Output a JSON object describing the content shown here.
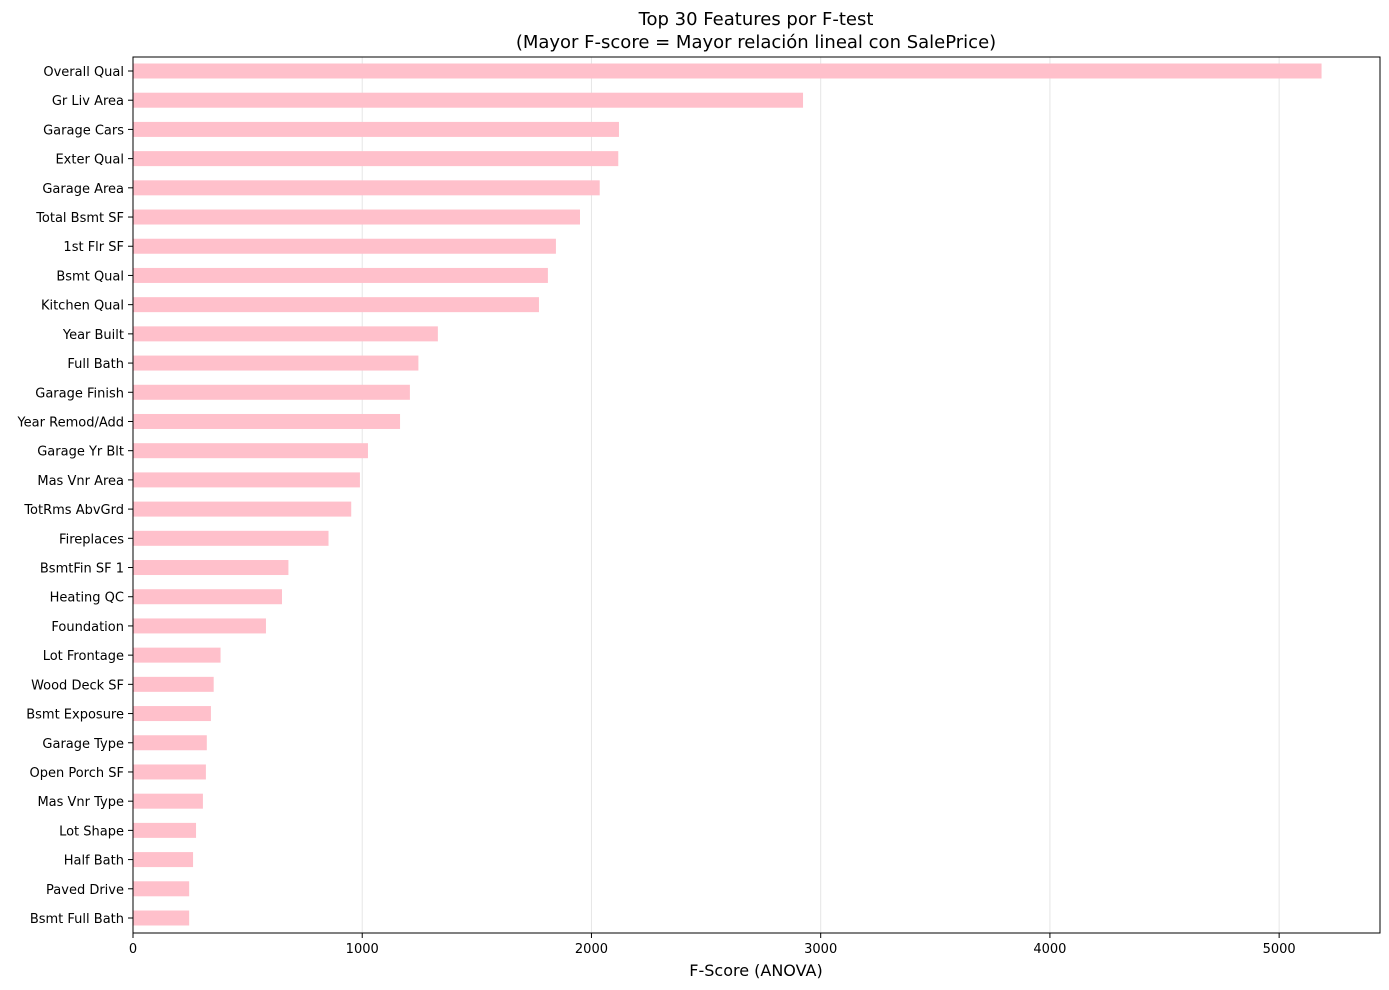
{
  "chart_data": {
    "type": "bar",
    "orientation": "horizontal",
    "title": "Top 30 Features por F-test",
    "subtitle": "(Mayor F-score = Mayor relación lineal con SalePrice)",
    "xlabel": "F-Score (ANOVA)",
    "ylabel": "",
    "xlim": [
      0,
      5440
    ],
    "xticks": [
      0,
      1000,
      2000,
      3000,
      4000,
      5000
    ],
    "grid": "x",
    "bar_color": "#ffc0cb",
    "categories": [
      "Overall Qual",
      "Gr Liv Area",
      "Garage Cars",
      "Exter Qual",
      "Garage Area",
      "Total Bsmt SF",
      "1st Flr SF",
      "Bsmt Qual",
      "Kitchen Qual",
      "Year Built",
      "Full Bath",
      "Garage Finish",
      "Year Remod/Add",
      "Garage Yr Blt",
      "Mas Vnr Area",
      "TotRms AbvGrd",
      "Fireplaces",
      "BsmtFin SF 1",
      "Heating QC",
      "Foundation",
      "Lot Frontage",
      "Wood Deck SF",
      "Bsmt Exposure",
      "Garage Type",
      "Open Porch SF",
      "Mas Vnr Type",
      "Lot Shape",
      "Half Bath",
      "Paved Drive",
      "Bsmt Full Bath"
    ],
    "values": [
      5185,
      2923,
      2120,
      2117,
      2036,
      1950,
      1845,
      1810,
      1771,
      1330,
      1245,
      1208,
      1165,
      1025,
      990,
      952,
      853,
      678,
      650,
      580,
      382,
      352,
      340,
      322,
      318,
      305,
      275,
      262,
      245,
      245
    ]
  }
}
